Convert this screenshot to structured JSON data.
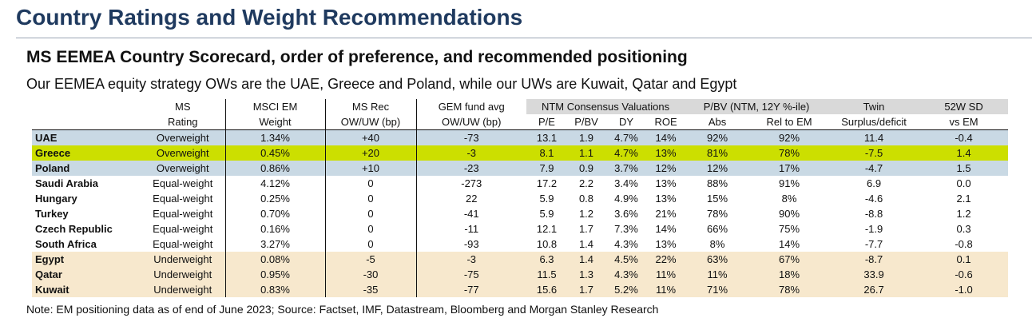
{
  "title": "Country Ratings and Weight Recommendations",
  "subtitle": "MS EEMEA Country Scorecard, order of preference, and recommended positioning",
  "intro": "Our EEMEA equity strategy OWs are the UAE, Greece and Poland, while our UWs are Kuwait, Qatar and Egypt",
  "note": "Note: EM positioning data as of end of June 2023; Source: Factset, IMF, Datastream, Bloomberg and Morgan Stanley Research",
  "header": {
    "ms_rating": [
      "MS",
      "Rating"
    ],
    "msci_weight": [
      "MSCI EM",
      "Weight"
    ],
    "ms_rec": [
      "MS Rec",
      "OW/UW (bp)"
    ],
    "gem_fund": [
      "GEM fund avg",
      "OW/UW (bp)"
    ],
    "ntm_group": "NTM Consensus Valuations",
    "ntm_cols": [
      "P/E",
      "P/BV",
      "DY",
      "ROE"
    ],
    "pbv_group": "P/BV (NTM, 12Y %-ile)",
    "pbv_cols": [
      "Abs",
      "Rel to EM"
    ],
    "twin": [
      "Twin",
      "Surplus/deficit"
    ],
    "sd": [
      "52W SD",
      "vs EM"
    ]
  },
  "rows": [
    {
      "country": "UAE",
      "rating": "Overweight",
      "weight": "1.34%",
      "rec": "+40",
      "gem": "-73",
      "pe": "13.1",
      "pbv": "1.9",
      "dy": "4.7%",
      "roe": "14%",
      "abs": "92%",
      "rel": "92%",
      "twin": "11.4",
      "sd": "-0.4"
    },
    {
      "country": "Greece",
      "rating": "Overweight",
      "weight": "0.45%",
      "rec": "+20",
      "gem": "-3",
      "pe": "8.1",
      "pbv": "1.1",
      "dy": "4.7%",
      "roe": "13%",
      "abs": "81%",
      "rel": "78%",
      "twin": "-7.5",
      "sd": "1.4"
    },
    {
      "country": "Poland",
      "rating": "Overweight",
      "weight": "0.86%",
      "rec": "+10",
      "gem": "-23",
      "pe": "7.9",
      "pbv": "0.9",
      "dy": "3.7%",
      "roe": "12%",
      "abs": "12%",
      "rel": "17%",
      "twin": "-4.7",
      "sd": "1.5"
    },
    {
      "country": "Saudi Arabia",
      "rating": "Equal-weight",
      "weight": "4.12%",
      "rec": "0",
      "gem": "-273",
      "pe": "17.2",
      "pbv": "2.2",
      "dy": "3.4%",
      "roe": "13%",
      "abs": "88%",
      "rel": "91%",
      "twin": "6.9",
      "sd": "0.0"
    },
    {
      "country": "Hungary",
      "rating": "Equal-weight",
      "weight": "0.25%",
      "rec": "0",
      "gem": "22",
      "pe": "5.9",
      "pbv": "0.8",
      "dy": "4.9%",
      "roe": "13%",
      "abs": "15%",
      "rel": "8%",
      "twin": "-4.6",
      "sd": "2.1"
    },
    {
      "country": "Turkey",
      "rating": "Equal-weight",
      "weight": "0.70%",
      "rec": "0",
      "gem": "-41",
      "pe": "5.9",
      "pbv": "1.2",
      "dy": "3.6%",
      "roe": "21%",
      "abs": "78%",
      "rel": "90%",
      "twin": "-8.8",
      "sd": "1.2"
    },
    {
      "country": "Czech Republic",
      "rating": "Equal-weight",
      "weight": "0.16%",
      "rec": "0",
      "gem": "-11",
      "pe": "12.1",
      "pbv": "1.7",
      "dy": "7.3%",
      "roe": "14%",
      "abs": "66%",
      "rel": "75%",
      "twin": "-1.9",
      "sd": "0.3"
    },
    {
      "country": "South Africa",
      "rating": "Equal-weight",
      "weight": "3.27%",
      "rec": "0",
      "gem": "-93",
      "pe": "10.8",
      "pbv": "1.4",
      "dy": "4.3%",
      "roe": "13%",
      "abs": "8%",
      "rel": "14%",
      "twin": "-7.7",
      "sd": "-0.8"
    },
    {
      "country": "Egypt",
      "rating": "Underweight",
      "weight": "0.08%",
      "rec": "-5",
      "gem": "-3",
      "pe": "6.3",
      "pbv": "1.4",
      "dy": "4.5%",
      "roe": "22%",
      "abs": "63%",
      "rel": "67%",
      "twin": "-8.7",
      "sd": "0.1"
    },
    {
      "country": "Qatar",
      "rating": "Underweight",
      "weight": "0.95%",
      "rec": "-30",
      "gem": "-75",
      "pe": "11.5",
      "pbv": "1.3",
      "dy": "4.3%",
      "roe": "11%",
      "abs": "11%",
      "rel": "18%",
      "twin": "33.9",
      "sd": "-0.6"
    },
    {
      "country": "Kuwait",
      "rating": "Underweight",
      "weight": "0.83%",
      "rec": "-35",
      "gem": "-77",
      "pe": "15.6",
      "pbv": "1.7",
      "dy": "5.2%",
      "roe": "11%",
      "abs": "71%",
      "rel": "78%",
      "twin": "26.7",
      "sd": "-1.0"
    }
  ],
  "colors": {
    "title": "#1f3a5f",
    "overweight_band": "#c9d9e4",
    "underweight_band": "#f7e8cd",
    "highlight": "#ccdf00",
    "header_group": "#d9d9d9"
  }
}
